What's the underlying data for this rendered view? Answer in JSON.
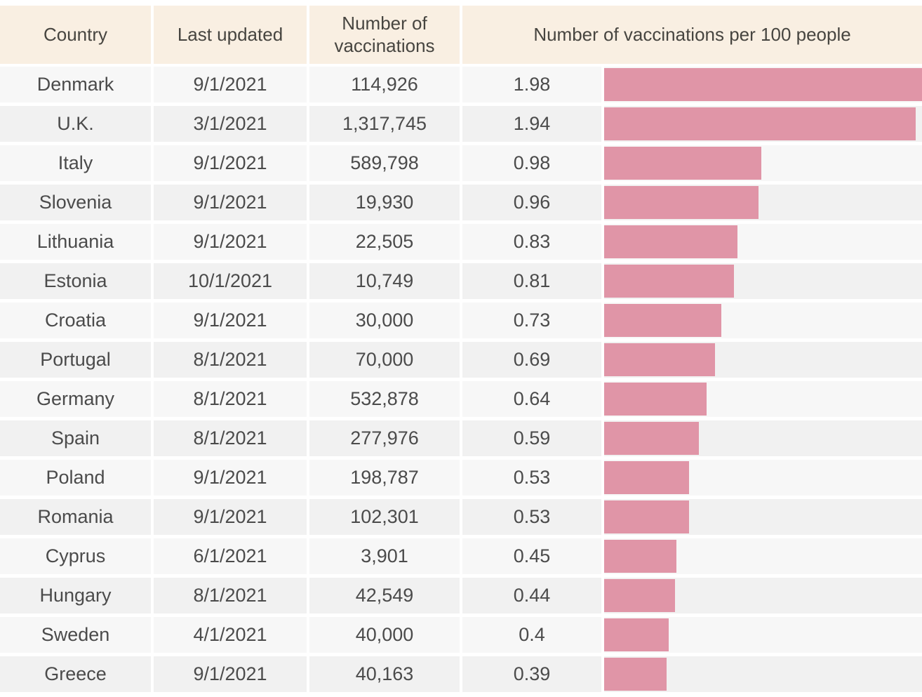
{
  "header": {
    "country": "Country",
    "last_updated": "Last updated",
    "vaccinations": "Number of vaccinations",
    "per_100": "Number of vaccinations per 100 people"
  },
  "chart_data": {
    "type": "bar",
    "orientation": "horizontal",
    "title": "Number of vaccinations per 100 people",
    "columns": [
      "Country",
      "Last updated",
      "Number of vaccinations",
      "Number of vaccinations per 100 people"
    ],
    "categories": [
      "Denmark",
      "U.K.",
      "Italy",
      "Slovenia",
      "Lithuania",
      "Estonia",
      "Croatia",
      "Portugal",
      "Germany",
      "Spain",
      "Poland",
      "Romania",
      "Cyprus",
      "Hungary",
      "Sweden",
      "Greece"
    ],
    "last_updated": [
      "9/1/2021",
      "3/1/2021",
      "9/1/2021",
      "9/1/2021",
      "9/1/2021",
      "10/1/2021",
      "9/1/2021",
      "8/1/2021",
      "8/1/2021",
      "8/1/2021",
      "9/1/2021",
      "9/1/2021",
      "6/1/2021",
      "8/1/2021",
      "4/1/2021",
      "9/1/2021"
    ],
    "vaccinations": [
      "114,926",
      "1,317,745",
      "589,798",
      "19,930",
      "22,505",
      "10,749",
      "30,000",
      "70,000",
      "532,878",
      "277,976",
      "198,787",
      "102,301",
      "3,901",
      "42,549",
      "40,000",
      "40,163"
    ],
    "values": [
      1.98,
      1.94,
      0.98,
      0.96,
      0.83,
      0.81,
      0.73,
      0.69,
      0.64,
      0.59,
      0.53,
      0.53,
      0.45,
      0.44,
      0.4,
      0.39
    ],
    "value_labels": [
      "1.98",
      "1.94",
      "0.98",
      "0.96",
      "0.83",
      "0.81",
      "0.73",
      "0.69",
      "0.64",
      "0.59",
      "0.53",
      "0.53",
      "0.45",
      "0.44",
      "0.4",
      "0.39"
    ],
    "xlim": [
      0,
      1.98
    ],
    "grid": false,
    "legend": false
  },
  "colors": {
    "header_bg": "#f9efe2",
    "row_light": "#f7f7f7",
    "row_dark": "#f1f1f1",
    "bar": "#e095a7",
    "text": "#4b4b4b"
  }
}
